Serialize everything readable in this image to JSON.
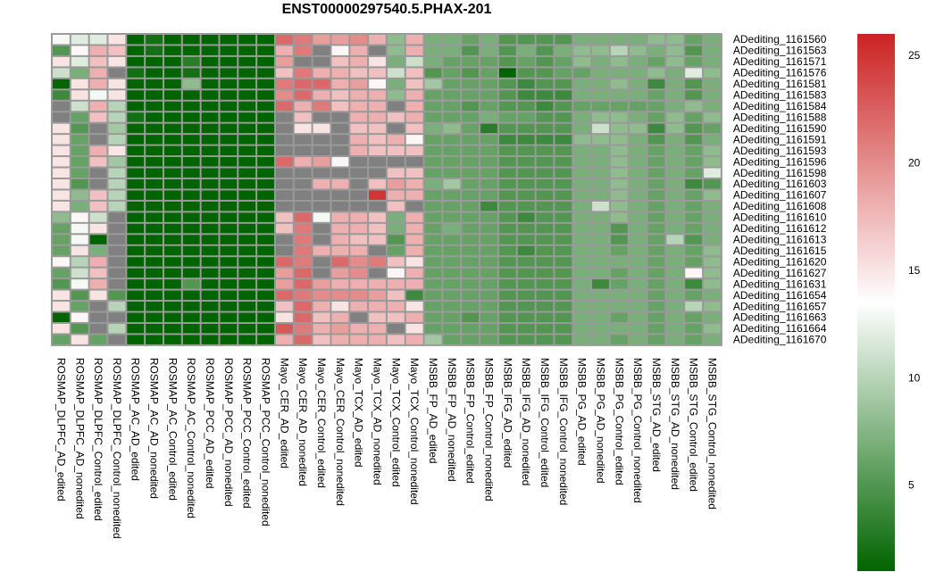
{
  "chart_data": {
    "type": "heatmap",
    "title": "ENST00000297540.5.PHAX-201",
    "rows": [
      "ADediting_1161560",
      "ADediting_1161563",
      "ADediting_1161571",
      "ADediting_1161576",
      "ADediting_1161581",
      "ADediting_1161583",
      "ADediting_1161584",
      "ADediting_1161588",
      "ADediting_1161590",
      "ADediting_1161591",
      "ADediting_1161593",
      "ADediting_1161596",
      "ADediting_1161598",
      "ADediting_1161603",
      "ADediting_1161607",
      "ADediting_1161608",
      "ADediting_1161610",
      "ADediting_1161612",
      "ADediting_1161613",
      "ADediting_1161615",
      "ADediting_1161620",
      "ADediting_1161627",
      "ADediting_1161631",
      "ADediting_1161654",
      "ADediting_1161657",
      "ADediting_1161663",
      "ADediting_1161664",
      "ADediting_1161670"
    ],
    "columns": [
      "ROSMAP_DLPFC_AD_edited",
      "ROSMAP_DLPFC_AD_nonedited",
      "ROSMAP_DLPFC_Control_edited",
      "ROSMAP_DLPFC_Control_nonedited",
      "ROSMAP_AC_AD_edited",
      "ROSMAP_AC_AD_nonedited",
      "ROSMAP_AC_Control_edited",
      "ROSMAP_AC_Control_nonedited",
      "ROSMAP_PCC_AD_edited",
      "ROSMAP_PCC_AD_nonedited",
      "ROSMAP_PCC_Control_edited",
      "ROSMAP_PCC_Control_nonedited",
      "Mayo_CER_AD_edited",
      "Mayo_CER_AD_nonedited",
      "Mayo_CER_Control_edited",
      "Mayo_CER_Control_nonedited",
      "Mayo_TCX_AD_edited",
      "Mayo_TCX_AD_nonedited",
      "Mayo_TCX_Control_edited",
      "Mayo_TCX_Control_nonedited",
      "MSBB_FP_AD_edited",
      "MSBB_FP_AD_nonedited",
      "MSBB_FP_Control_edited",
      "MSBB_FP_Control_nonedited",
      "MSBB_IFG_AD_edited",
      "MSBB_IFG_AD_nonedited",
      "MSBB_IFG_Control_edited",
      "MSBB_IFG_Control_nonedited",
      "MSBB_PG_AD_edited",
      "MSBB_PG_AD_nonedited",
      "MSBB_PG_Control_edited",
      "MSBB_PG_Control_nonedited",
      "MSBB_STG_AD_edited",
      "MSBB_STG_AD_nonedited",
      "MSBB_STG_Control_edited",
      "MSBB_STG_Control_nonedited"
    ],
    "values": [
      [
        13,
        12,
        12,
        15,
        1,
        2,
        1,
        1,
        1,
        1,
        1,
        1,
        22,
        21,
        19,
        19,
        20,
        18,
        8,
        18,
        7,
        7,
        6,
        7,
        5,
        5,
        5,
        5,
        7,
        7,
        7,
        7,
        8,
        8,
        6,
        7
      ],
      [
        5,
        14,
        18,
        17,
        1,
        2,
        1,
        1,
        1,
        1,
        1,
        1,
        18,
        21,
        16,
        14,
        18,
        16,
        8,
        18,
        7,
        7,
        5,
        7,
        5,
        7,
        5,
        7,
        8,
        8,
        10,
        8,
        7,
        8,
        5,
        7
      ],
      [
        15,
        12,
        17,
        15,
        1,
        1,
        1,
        3,
        1,
        1,
        1,
        1,
        19,
        16,
        16,
        17,
        18,
        15,
        7,
        11,
        7,
        6,
        6,
        6,
        5,
        6,
        5,
        6,
        8,
        7,
        8,
        7,
        6,
        8,
        6,
        7
      ],
      [
        11,
        7,
        18,
        16,
        2,
        1,
        1,
        2,
        1,
        1,
        1,
        1,
        17,
        21,
        18,
        18,
        17,
        17,
        11,
        17,
        5,
        6,
        5,
        6,
        1,
        5,
        5,
        6,
        6,
        7,
        7,
        7,
        8,
        7,
        12,
        8
      ],
      [
        1,
        15,
        18,
        15,
        1,
        1,
        1,
        8,
        1,
        1,
        1,
        1,
        21,
        22,
        22,
        18,
        19,
        14,
        7,
        17,
        9,
        6,
        6,
        6,
        5,
        4,
        5,
        5,
        7,
        7,
        8,
        7,
        4,
        7,
        5,
        7
      ],
      [
        4,
        15,
        13,
        15,
        1,
        1,
        1,
        1,
        1,
        1,
        1,
        1,
        20,
        22,
        18,
        17,
        18,
        18,
        8,
        18,
        6,
        6,
        6,
        6,
        5,
        4,
        4,
        4,
        7,
        7,
        7,
        7,
        6,
        7,
        5,
        7
      ],
      [
        16,
        11,
        18,
        10,
        1,
        1,
        1,
        1,
        1,
        1,
        1,
        1,
        22,
        18,
        21,
        17,
        18,
        18,
        16,
        18,
        6,
        6,
        5,
        6,
        5,
        5,
        4,
        5,
        6,
        6,
        6,
        6,
        6,
        7,
        8,
        7
      ],
      [
        16,
        6,
        17,
        10,
        2,
        1,
        1,
        1,
        1,
        1,
        1,
        1,
        16,
        17,
        16,
        16,
        18,
        18,
        17,
        18,
        6,
        6,
        6,
        7,
        6,
        6,
        5,
        5,
        7,
        8,
        8,
        7,
        6,
        8,
        6,
        8
      ],
      [
        15,
        5,
        16,
        9,
        1,
        1,
        1,
        1,
        1,
        1,
        1,
        1,
        16,
        15,
        15,
        16,
        17,
        17,
        16,
        17,
        7,
        8,
        6,
        3,
        5,
        5,
        5,
        5,
        7,
        11,
        8,
        8,
        4,
        8,
        5,
        6
      ],
      [
        15,
        6,
        16,
        10,
        1,
        1,
        1,
        1,
        1,
        1,
        1,
        1,
        16,
        16,
        16,
        16,
        18,
        17,
        18,
        14,
        6,
        6,
        6,
        6,
        4,
        4,
        4,
        4,
        8,
        8,
        8,
        7,
        5,
        7,
        5,
        7
      ],
      [
        15,
        6,
        18,
        15,
        1,
        1,
        1,
        1,
        1,
        1,
        1,
        1,
        16,
        16,
        16,
        16,
        18,
        17,
        17,
        17,
        6,
        6,
        6,
        6,
        5,
        5,
        5,
        5,
        7,
        7,
        8,
        7,
        6,
        7,
        6,
        8
      ],
      [
        15,
        6,
        17,
        9,
        1,
        1,
        1,
        1,
        1,
        1,
        1,
        1,
        22,
        18,
        19,
        14,
        16,
        16,
        16,
        16,
        6,
        6,
        6,
        6,
        5,
        5,
        5,
        5,
        7,
        7,
        8,
        7,
        6,
        7,
        6,
        8
      ],
      [
        15,
        6,
        16,
        10,
        1,
        1,
        1,
        1,
        1,
        1,
        1,
        1,
        16,
        16,
        16,
        16,
        16,
        16,
        17,
        17,
        6,
        6,
        6,
        6,
        5,
        5,
        5,
        5,
        7,
        7,
        8,
        7,
        6,
        7,
        6,
        12
      ],
      [
        15,
        5,
        16,
        10,
        1,
        1,
        1,
        1,
        1,
        1,
        1,
        1,
        16,
        16,
        18,
        18,
        16,
        17,
        19,
        18,
        7,
        9,
        6,
        6,
        5,
        5,
        5,
        5,
        7,
        7,
        8,
        7,
        6,
        7,
        4,
        5
      ],
      [
        15,
        8,
        17,
        10,
        1,
        1,
        1,
        1,
        1,
        1,
        1,
        1,
        16,
        16,
        16,
        16,
        16,
        25,
        18,
        18,
        6,
        6,
        6,
        6,
        5,
        5,
        5,
        5,
        7,
        7,
        8,
        7,
        6,
        7,
        6,
        8
      ],
      [
        15,
        7,
        17,
        10,
        1,
        1,
        1,
        1,
        1,
        1,
        1,
        1,
        16,
        16,
        16,
        16,
        16,
        16,
        17,
        16,
        6,
        6,
        6,
        4,
        5,
        5,
        5,
        5,
        7,
        11,
        8,
        7,
        6,
        7,
        6,
        7
      ],
      [
        8,
        14,
        11,
        16,
        1,
        1,
        1,
        1,
        1,
        1,
        1,
        1,
        17,
        22,
        13,
        18,
        18,
        17,
        7,
        18,
        6,
        6,
        6,
        6,
        5,
        4,
        5,
        5,
        7,
        7,
        8,
        7,
        6,
        7,
        6,
        7
      ],
      [
        6,
        13,
        15,
        16,
        1,
        1,
        1,
        1,
        1,
        1,
        1,
        1,
        17,
        21,
        16,
        18,
        18,
        17,
        7,
        18,
        6,
        7,
        6,
        6,
        5,
        5,
        5,
        5,
        7,
        7,
        5,
        7,
        6,
        7,
        6,
        7
      ],
      [
        6,
        13,
        1,
        16,
        1,
        1,
        1,
        1,
        1,
        1,
        1,
        1,
        16,
        21,
        16,
        18,
        17,
        17,
        5,
        18,
        6,
        6,
        6,
        6,
        5,
        5,
        5,
        5,
        7,
        7,
        5,
        7,
        6,
        10,
        5,
        7
      ],
      [
        6,
        15,
        7,
        16,
        1,
        1,
        1,
        1,
        1,
        1,
        1,
        1,
        16,
        21,
        18,
        18,
        18,
        16,
        6,
        18,
        6,
        6,
        6,
        6,
        5,
        4,
        5,
        5,
        7,
        7,
        6,
        7,
        6,
        7,
        6,
        8
      ],
      [
        14,
        10,
        18,
        16,
        1,
        1,
        1,
        1,
        1,
        1,
        1,
        1,
        22,
        21,
        16,
        22,
        20,
        21,
        17,
        15,
        6,
        6,
        6,
        6,
        5,
        5,
        5,
        5,
        7,
        7,
        7,
        7,
        6,
        7,
        6,
        8
      ],
      [
        6,
        11,
        17,
        16,
        1,
        1,
        1,
        1,
        1,
        1,
        1,
        1,
        19,
        22,
        16,
        19,
        20,
        16,
        14,
        18,
        6,
        6,
        6,
        6,
        5,
        5,
        5,
        5,
        7,
        7,
        6,
        7,
        6,
        7,
        14,
        8
      ],
      [
        5,
        13,
        18,
        16,
        1,
        1,
        1,
        5,
        1,
        1,
        1,
        1,
        19,
        22,
        19,
        18,
        18,
        18,
        18,
        18,
        6,
        6,
        6,
        6,
        5,
        5,
        5,
        5,
        7,
        4,
        6,
        7,
        6,
        7,
        4,
        8
      ],
      [
        15,
        5,
        15,
        5,
        1,
        1,
        1,
        1,
        1,
        1,
        1,
        1,
        22,
        21,
        20,
        20,
        20,
        19,
        17,
        4,
        6,
        6,
        6,
        6,
        5,
        5,
        5,
        5,
        7,
        7,
        7,
        7,
        6,
        7,
        6,
        7
      ],
      [
        15,
        6,
        16,
        10,
        1,
        1,
        1,
        1,
        1,
        1,
        1,
        1,
        17,
        22,
        18,
        15,
        18,
        18,
        18,
        15,
        6,
        6,
        6,
        6,
        5,
        5,
        5,
        5,
        7,
        7,
        7,
        7,
        6,
        7,
        10,
        8
      ],
      [
        1,
        14,
        16,
        16,
        1,
        1,
        1,
        1,
        1,
        1,
        1,
        1,
        15,
        22,
        17,
        18,
        16,
        17,
        17,
        18,
        6,
        6,
        5,
        6,
        5,
        5,
        5,
        5,
        7,
        7,
        6,
        7,
        6,
        7,
        6,
        7
      ],
      [
        15,
        5,
        16,
        10,
        1,
        1,
        1,
        1,
        1,
        1,
        1,
        1,
        23,
        21,
        18,
        19,
        18,
        18,
        16,
        15,
        6,
        6,
        6,
        6,
        5,
        5,
        5,
        5,
        7,
        7,
        7,
        7,
        6,
        7,
        6,
        8
      ],
      [
        6,
        15,
        6,
        16,
        1,
        1,
        1,
        1,
        1,
        1,
        1,
        1,
        18,
        22,
        17,
        18,
        18,
        18,
        17,
        18,
        9,
        6,
        6,
        6,
        5,
        5,
        5,
        5,
        7,
        7,
        6,
        7,
        6,
        7,
        6,
        7
      ]
    ],
    "na_value": 16,
    "color_scale": {
      "low": "#006400",
      "mid": "#ffffff",
      "high": "#cc2222",
      "min": 1,
      "max": 26,
      "mid_value": 13.5
    },
    "na_color": "#808080",
    "legend": {
      "ticks": [
        5,
        10,
        15,
        20,
        25
      ],
      "placement": "right"
    }
  }
}
